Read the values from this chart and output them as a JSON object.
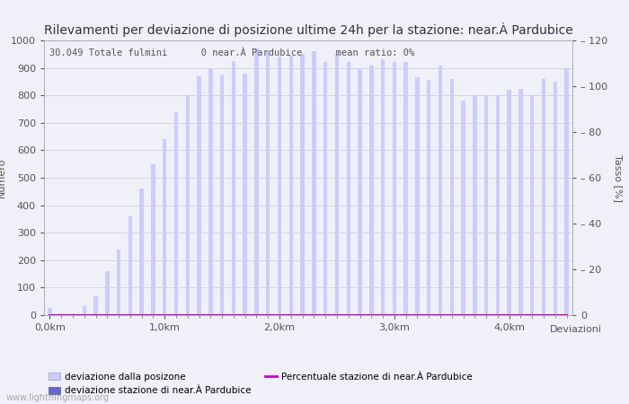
{
  "title": "Rilevamenti per deviazione di posizione ultime 24h per la stazione: near.À Pardubice",
  "annotation": "30.049 Totale fulmini      0 near.À Pardubice      mean ratio: 0%",
  "xlabel": "Deviazioni",
  "ylabel_left": "Numero",
  "ylabel_right": "Tasso [%]",
  "bar_color": "#ccccff",
  "bar_color_station": "#6666cc",
  "line_color": "#cc00cc",
  "background_color": "#f0f0f8",
  "grid_color": "#cccccc",
  "ylim_left": [
    0,
    1000
  ],
  "ylim_right": [
    0,
    120
  ],
  "bar_values": [
    25,
    5,
    5,
    32,
    70,
    160,
    240,
    360,
    460,
    550,
    640,
    740,
    800,
    870,
    900,
    875,
    925,
    880,
    970,
    960,
    940,
    945,
    950,
    960,
    920,
    950,
    920,
    900,
    910,
    930,
    920,
    920,
    865,
    855,
    910,
    860,
    780,
    800,
    800,
    800,
    820,
    825,
    800,
    860,
    850,
    900
  ],
  "station_values": [
    0,
    0,
    0,
    0,
    0,
    0,
    0,
    0,
    0,
    0,
    0,
    0,
    0,
    0,
    0,
    0,
    0,
    0,
    0,
    0,
    0,
    0,
    0,
    0,
    0,
    0,
    0,
    0,
    0,
    0,
    0,
    0,
    0,
    0,
    0,
    0,
    0,
    0,
    0,
    0,
    0,
    0,
    0,
    0,
    0,
    0
  ],
  "xtick_positions": [
    0,
    10,
    20,
    30,
    40
  ],
  "xtick_labels": [
    "0,0km",
    "1,0km",
    "2,0km",
    "3,0km",
    "4,0km"
  ],
  "ytick_left": [
    0,
    100,
    200,
    300,
    400,
    500,
    600,
    700,
    800,
    900,
    1000
  ],
  "ytick_right": [
    0,
    20,
    40,
    60,
    80,
    100,
    120
  ],
  "legend_label_bar": "deviazione dalla posizone",
  "legend_label_station": "deviazione stazione di near.À Pardubice",
  "legend_label_line": "Percentuale stazione di near.À Pardubice",
  "watermark": "www.lightningmaps.org",
  "title_fontsize": 10,
  "axis_fontsize": 8,
  "tick_fontsize": 8
}
